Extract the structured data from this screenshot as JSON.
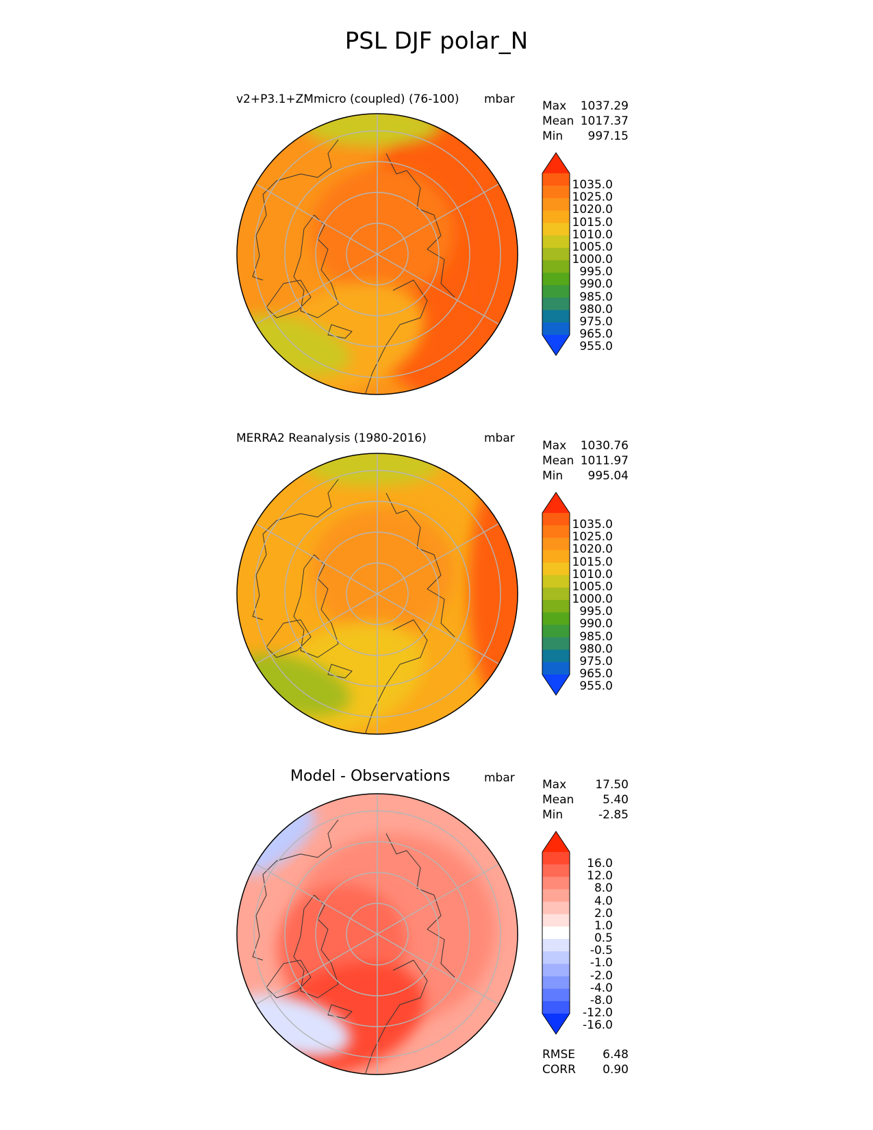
{
  "figure": {
    "title": "PSL DJF polar_N"
  },
  "colors": {
    "psl_levels": [
      "#0d45ff",
      "#0f64d0",
      "#107899",
      "#2f8c64",
      "#3d9b3a",
      "#56a81a",
      "#7fb01a",
      "#a6bb1f",
      "#cdc720",
      "#f4c31f",
      "#fbaa1a",
      "#fc941a",
      "#fd7a15",
      "#fe5e10",
      "#ff2d05"
    ],
    "diff_levels": [
      "#0a35ff",
      "#3b5cff",
      "#5f7bff",
      "#8298ff",
      "#a1b1ff",
      "#c0cbff",
      "#dde3ff",
      "#ffffff",
      "#ffe0dc",
      "#ffc3ba",
      "#ffa696",
      "#ff8a77",
      "#ff6a55",
      "#ff4a30",
      "#ff2a05"
    ]
  },
  "chart_data": [
    {
      "type": "heatmap",
      "projection": "north polar stereographic",
      "title": "v2+P3.1+ZMmicro (coupled) (76-100)",
      "units": "mbar",
      "stats": {
        "max_label": "Max",
        "max": "1037.29",
        "mean_label": "Mean",
        "mean": "1017.37",
        "min_label": "Min",
        "min": "997.15"
      },
      "colorbar": {
        "ticks": [
          "1035.0",
          "1025.0",
          "1020.0",
          "1015.0",
          "1010.0",
          "1005.0",
          "1000.0",
          "995.0",
          "990.0",
          "985.0",
          "980.0",
          "975.0",
          "965.0",
          "955.0"
        ],
        "extend": "both"
      },
      "field": [
        {
          "region": "outer",
          "value": 1015
        },
        {
          "region": "east-sector",
          "value": 1025
        },
        {
          "region": "east-edge",
          "value": 1030
        },
        {
          "region": "central-arctic",
          "value": 1022
        },
        {
          "region": "north-atlantic",
          "value": 1010
        },
        {
          "region": "pacific-top",
          "value": 1000
        },
        {
          "region": "bottom-left",
          "value": 1003
        }
      ]
    },
    {
      "type": "heatmap",
      "projection": "north polar stereographic",
      "title": "MERRA2 Reanalysis (1980-2016)",
      "units": "mbar",
      "stats": {
        "max_label": "Max",
        "max": "1030.76",
        "mean_label": "Mean",
        "mean": "1011.97",
        "min_label": "Min",
        "min": "995.04"
      },
      "colorbar": {
        "ticks": [
          "1035.0",
          "1025.0",
          "1020.0",
          "1015.0",
          "1010.0",
          "1005.0",
          "1000.0",
          "995.0",
          "990.0",
          "985.0",
          "980.0",
          "975.0",
          "965.0",
          "955.0"
        ],
        "extend": "both"
      },
      "field": [
        {
          "region": "outer",
          "value": 1012
        },
        {
          "region": "east-edge",
          "value": 1025
        },
        {
          "region": "central-arctic",
          "value": 1017
        },
        {
          "region": "north-atlantic",
          "value": 1007
        },
        {
          "region": "pacific-top",
          "value": 1000
        },
        {
          "region": "bottom-left",
          "value": 998
        }
      ]
    },
    {
      "type": "heatmap",
      "projection": "north polar stereographic",
      "title": "Model - Observations",
      "units": "mbar",
      "stats": {
        "max_label": "Max",
        "max": "17.50",
        "mean_label": "Mean",
        "mean": "5.40",
        "min_label": "Min",
        "min": "-2.85"
      },
      "colorbar": {
        "ticks": [
          "16.0",
          "12.0",
          "8.0",
          "4.0",
          "2.0",
          "1.0",
          "0.5",
          "-0.5",
          "-1.0",
          "-2.0",
          "-4.0",
          "-8.0",
          "-12.0",
          "-16.0"
        ],
        "extend": "both"
      },
      "field": [
        {
          "region": "outer",
          "value": 3
        },
        {
          "region": "central",
          "value": 5
        },
        {
          "region": "west-center",
          "value": 9
        },
        {
          "region": "north-atlantic",
          "value": 12
        },
        {
          "region": "pacific-top-left",
          "value": -2
        },
        {
          "region": "bottom-left",
          "value": -1
        }
      ],
      "metrics": {
        "rmse_label": "RMSE",
        "rmse": "6.48",
        "corr_label": "CORR",
        "corr": "0.90"
      }
    }
  ]
}
